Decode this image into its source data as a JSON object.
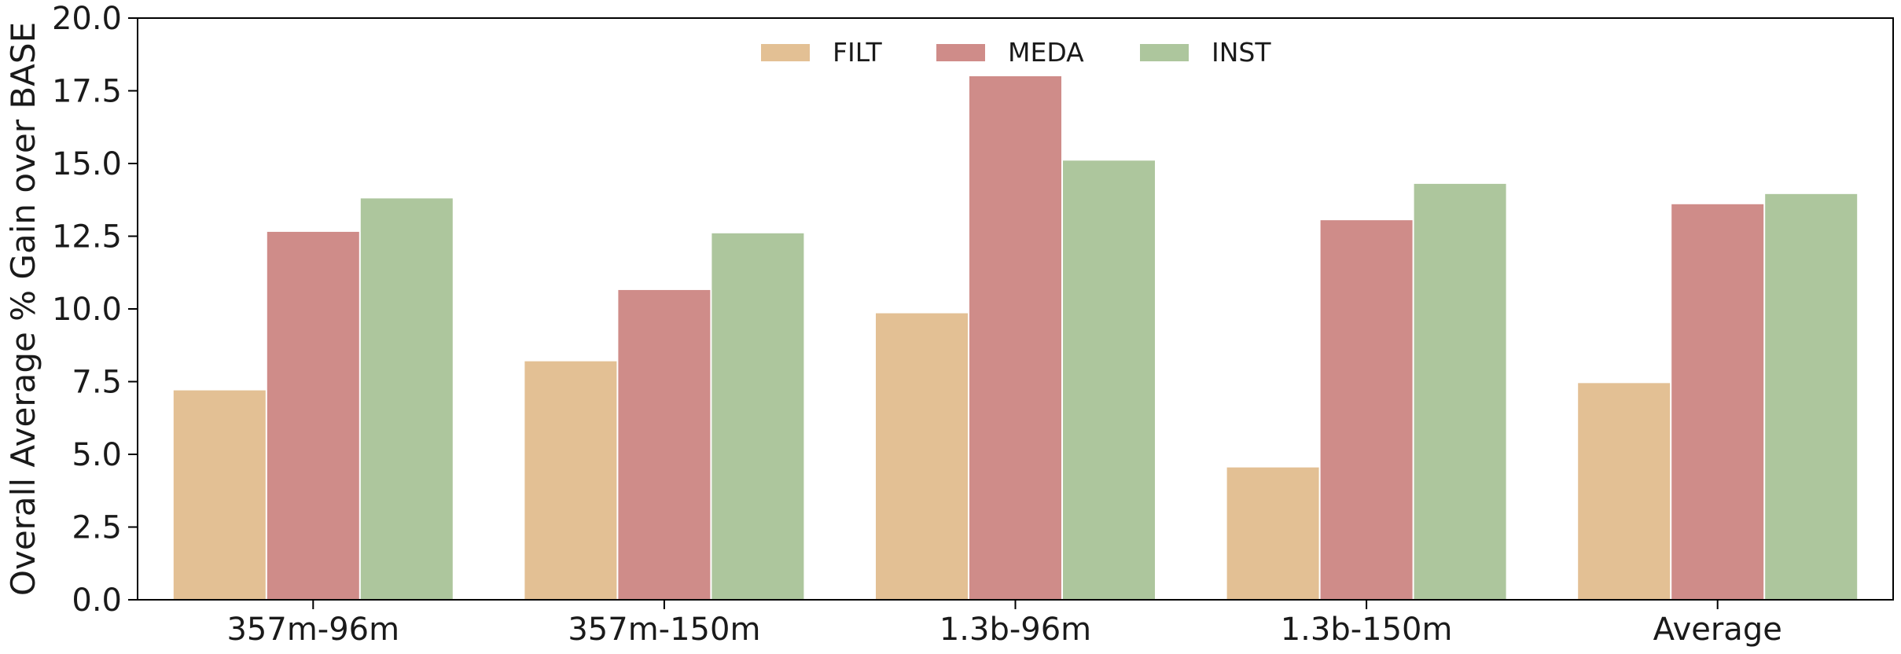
{
  "chart_data": {
    "type": "bar",
    "title": "",
    "xlabel": "",
    "ylabel": "Overall Average % Gain over BASE",
    "ylim": [
      0,
      20
    ],
    "yticks": [
      "0.0",
      "2.5",
      "5.0",
      "7.5",
      "10.0",
      "12.5",
      "15.0",
      "17.5",
      "20.0"
    ],
    "categories": [
      "357m-96m",
      "357m-150m",
      "1.3b-96m",
      "1.3b-150m",
      "Average"
    ],
    "series": [
      {
        "name": "FILT",
        "color": "#e3c094",
        "values": [
          7.2,
          8.2,
          9.85,
          4.55,
          7.45
        ]
      },
      {
        "name": "MEDA",
        "color": "#cf8c89",
        "values": [
          12.65,
          10.65,
          18.0,
          13.05,
          13.6
        ]
      },
      {
        "name": "INST",
        "color": "#adc69d",
        "values": [
          13.8,
          12.6,
          15.1,
          14.3,
          13.95
        ]
      }
    ],
    "grid": false,
    "legend_position": "top-center"
  }
}
